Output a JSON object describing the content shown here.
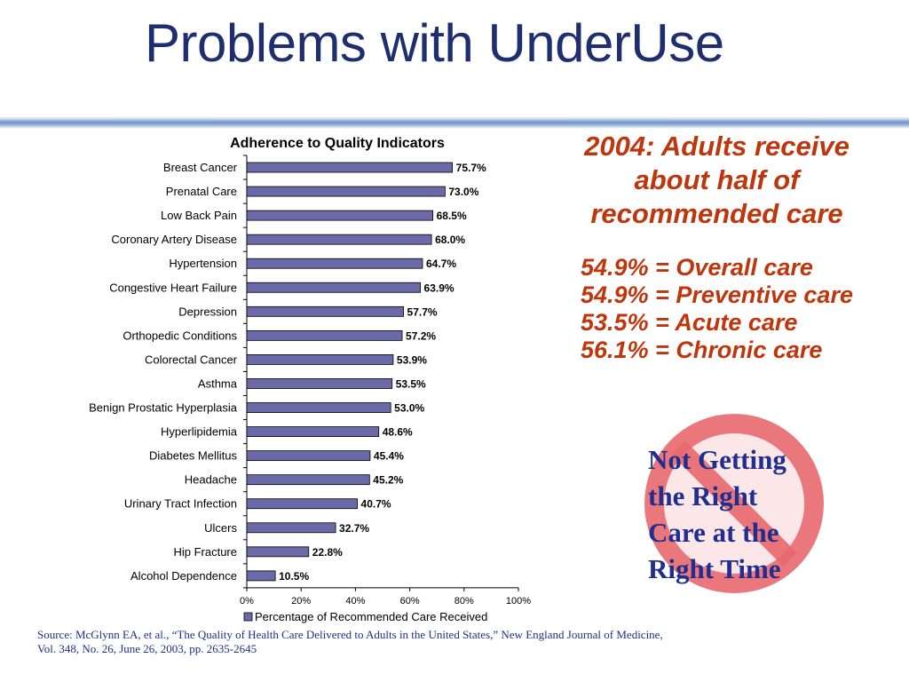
{
  "slide": {
    "title": "Problems with UnderUse"
  },
  "chart_data": {
    "type": "bar",
    "orientation": "horizontal",
    "title": "Adherence to Quality Indicators",
    "categories": [
      "Breast Cancer",
      "Prenatal Care",
      "Low Back Pain",
      "Coronary Artery Disease",
      "Hypertension",
      "Congestive Heart Failure",
      "Depression",
      "Orthopedic Conditions",
      "Colorectal Cancer",
      "Asthma",
      "Benign Prostatic Hyperplasia",
      "Hyperlipidemia",
      "Diabetes Mellitus",
      "Headache",
      "Urinary Tract Infection",
      "Ulcers",
      "Hip Fracture",
      "Alcohol Dependence"
    ],
    "values": [
      75.7,
      73.0,
      68.5,
      68.0,
      64.7,
      63.9,
      57.7,
      57.2,
      53.9,
      53.5,
      53.0,
      48.6,
      45.4,
      45.2,
      40.7,
      32.7,
      22.8,
      10.5
    ],
    "data_labels": [
      "75.7%",
      "73.0%",
      "68.5%",
      "68.0%",
      "64.7%",
      "63.9%",
      "57.7%",
      "57.2%",
      "53.9%",
      "53.5%",
      "53.0%",
      "48.6%",
      "45.4%",
      "45.2%",
      "40.7%",
      "32.7%",
      "22.8%",
      "10.5%"
    ],
    "xlim": [
      0,
      100
    ],
    "x_ticks": [
      "0%",
      "20%",
      "40%",
      "60%",
      "80%",
      "100%"
    ],
    "legend": {
      "label": "Percentage of Recommended Care Received",
      "placement": "bottom"
    },
    "bar_color": "#6a6aa8",
    "grid": false
  },
  "callout": {
    "heading": "2004:  Adults receive about half of recommended care",
    "stats": [
      "54.9% = Overall care",
      "54.9% = Preventive care",
      "53.5% = Acute care",
      "56.1% = Chronic care"
    ],
    "color": "#c0350c"
  },
  "no_sign": {
    "text_lines": [
      "Not Getting",
      "the Right",
      "Care at the",
      "Right Time"
    ],
    "icon": "prohibition-icon",
    "ring_color": "#e8686e",
    "fill_color": "#f3b9bd"
  },
  "source": {
    "line1": "Source:  McGlynn EA, et al., “The Quality of Health Care Delivered to Adults in the United States,” New England Journal of Medicine,",
    "line2": "Vol. 348, No. 26, June 26, 2003, pp. 2635-2645"
  }
}
